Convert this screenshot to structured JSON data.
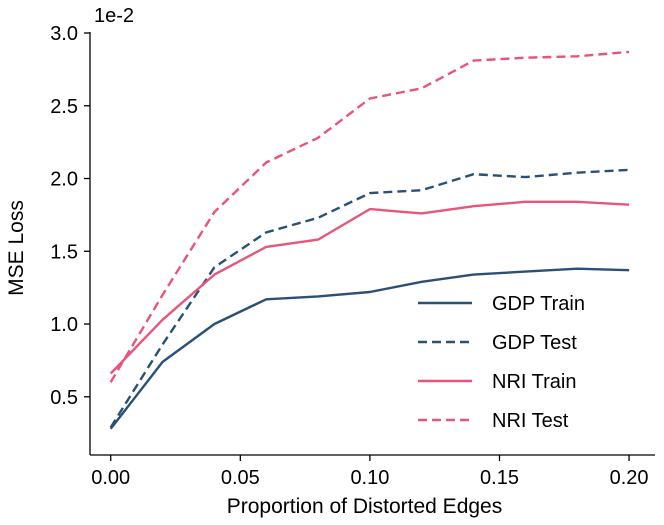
{
  "chart_data": {
    "type": "line",
    "xlabel": "Proportion of Distorted Edges",
    "ylabel": "MSE Loss",
    "y_scale_label": "1e-2",
    "x": [
      0.0,
      0.02,
      0.04,
      0.06,
      0.08,
      0.1,
      0.12,
      0.14,
      0.16,
      0.18,
      0.2
    ],
    "xlim": [
      -0.008,
      0.21
    ],
    "ylim": [
      0.1,
      3.0
    ],
    "x_ticks": [
      0.0,
      0.05,
      0.1,
      0.15,
      0.2
    ],
    "x_tick_labels": [
      "0.00",
      "0.05",
      "0.10",
      "0.15",
      "0.20"
    ],
    "y_ticks": [
      0.5,
      1.0,
      1.5,
      2.0,
      2.5,
      3.0
    ],
    "y_tick_labels": [
      "0.5",
      "1.0",
      "1.5",
      "2.0",
      "2.5",
      "3.0"
    ],
    "legend_position": "lower-right",
    "series": [
      {
        "name": "GDP Train",
        "color": "#2b5076",
        "dash": "solid",
        "values": [
          0.28,
          0.74,
          1.0,
          1.17,
          1.19,
          1.22,
          1.29,
          1.34,
          1.36,
          1.38,
          1.37
        ]
      },
      {
        "name": "GDP Test",
        "color": "#2b5076",
        "dash": "dashed",
        "values": [
          0.29,
          0.86,
          1.39,
          1.63,
          1.73,
          1.9,
          1.92,
          2.03,
          2.01,
          2.04,
          2.06
        ]
      },
      {
        "name": "NRI Train",
        "color": "#e8557a",
        "dash": "solid",
        "values": [
          0.66,
          1.03,
          1.34,
          1.53,
          1.58,
          1.79,
          1.76,
          1.81,
          1.84,
          1.84,
          1.82
        ]
      },
      {
        "name": "NRI Test",
        "color": "#e8557a",
        "dash": "dashed",
        "values": [
          0.6,
          1.2,
          1.77,
          2.11,
          2.28,
          2.55,
          2.62,
          2.81,
          2.83,
          2.84,
          2.87
        ]
      }
    ]
  }
}
